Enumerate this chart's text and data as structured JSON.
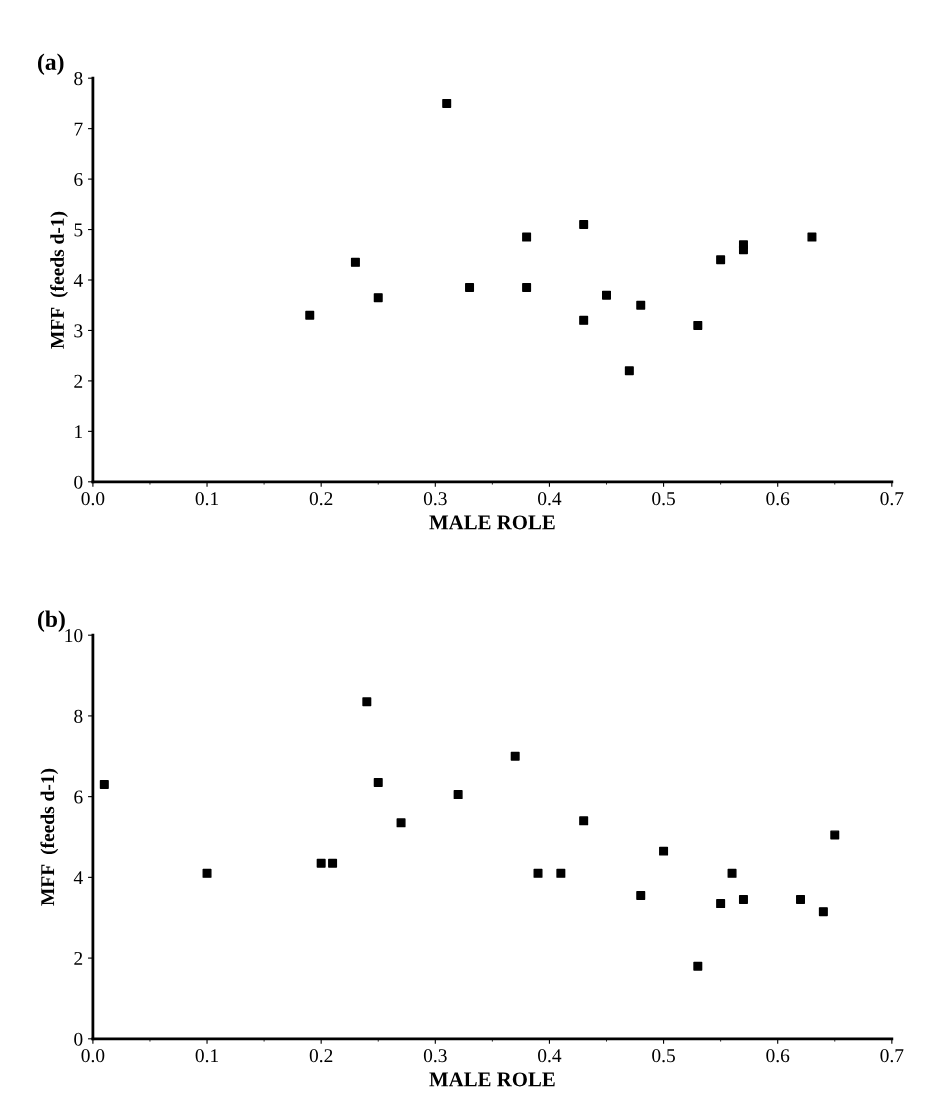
{
  "chart_data": [
    {
      "type": "scatter",
      "title": "(a)",
      "xlabel": "MALE ROLE",
      "ylabel": "MFF  (feeds d-1)",
      "marker": "square",
      "xlim": [
        0,
        0.7
      ],
      "xticks": [
        {
          "value": 0,
          "label": "0.0"
        },
        0.1,
        0.2,
        0.3,
        0.4,
        0.5,
        0.6,
        0.7
      ],
      "ylim": [
        0,
        8
      ],
      "yticks": [
        0,
        1,
        2,
        3,
        4,
        5,
        6,
        7,
        8
      ],
      "series": [
        {
          "color": "#000000",
          "x": [
            0.19,
            0.23,
            0.25,
            0.31,
            0.33,
            0.38,
            0.38,
            0.43,
            0.43,
            0.45,
            0.47,
            0.48,
            0.53,
            0.55,
            0.57,
            0.57,
            0.63
          ],
          "values": [
            3.3,
            4.35,
            3.65,
            7.5,
            3.85,
            4.85,
            3.85,
            5.1,
            3.2,
            3.7,
            2.2,
            3.5,
            3.1,
            4.4,
            4.7,
            4.6,
            4.85
          ]
        }
      ]
    },
    {
      "type": "scatter",
      "title": "(b)",
      "xlabel": "MALE ROLE",
      "ylabel": "MFF  (feeds d-1)",
      "marker": "square",
      "xlim": [
        0,
        0.7
      ],
      "xticks": [
        {
          "value": 0,
          "label": "0.0"
        },
        0.1,
        0.2,
        0.3,
        0.4,
        0.5,
        0.6,
        0.7
      ],
      "ylim": [
        0,
        10
      ],
      "yticks": [
        0,
        2,
        4,
        6,
        8,
        10
      ],
      "series": [
        {
          "color": "#000000",
          "x": [
            0.01,
            0.1,
            0.2,
            0.21,
            0.24,
            0.25,
            0.27,
            0.32,
            0.37,
            0.39,
            0.41,
            0.43,
            0.48,
            0.5,
            0.53,
            0.55,
            0.56,
            0.57,
            0.62,
            0.64,
            0.65
          ],
          "values": [
            6.3,
            4.1,
            4.35,
            4.35,
            8.35,
            6.35,
            5.35,
            6.05,
            7.0,
            4.1,
            4.1,
            5.4,
            3.55,
            4.65,
            1.8,
            3.35,
            4.1,
            3.45,
            3.45,
            3.15,
            5.05
          ]
        }
      ]
    }
  ]
}
